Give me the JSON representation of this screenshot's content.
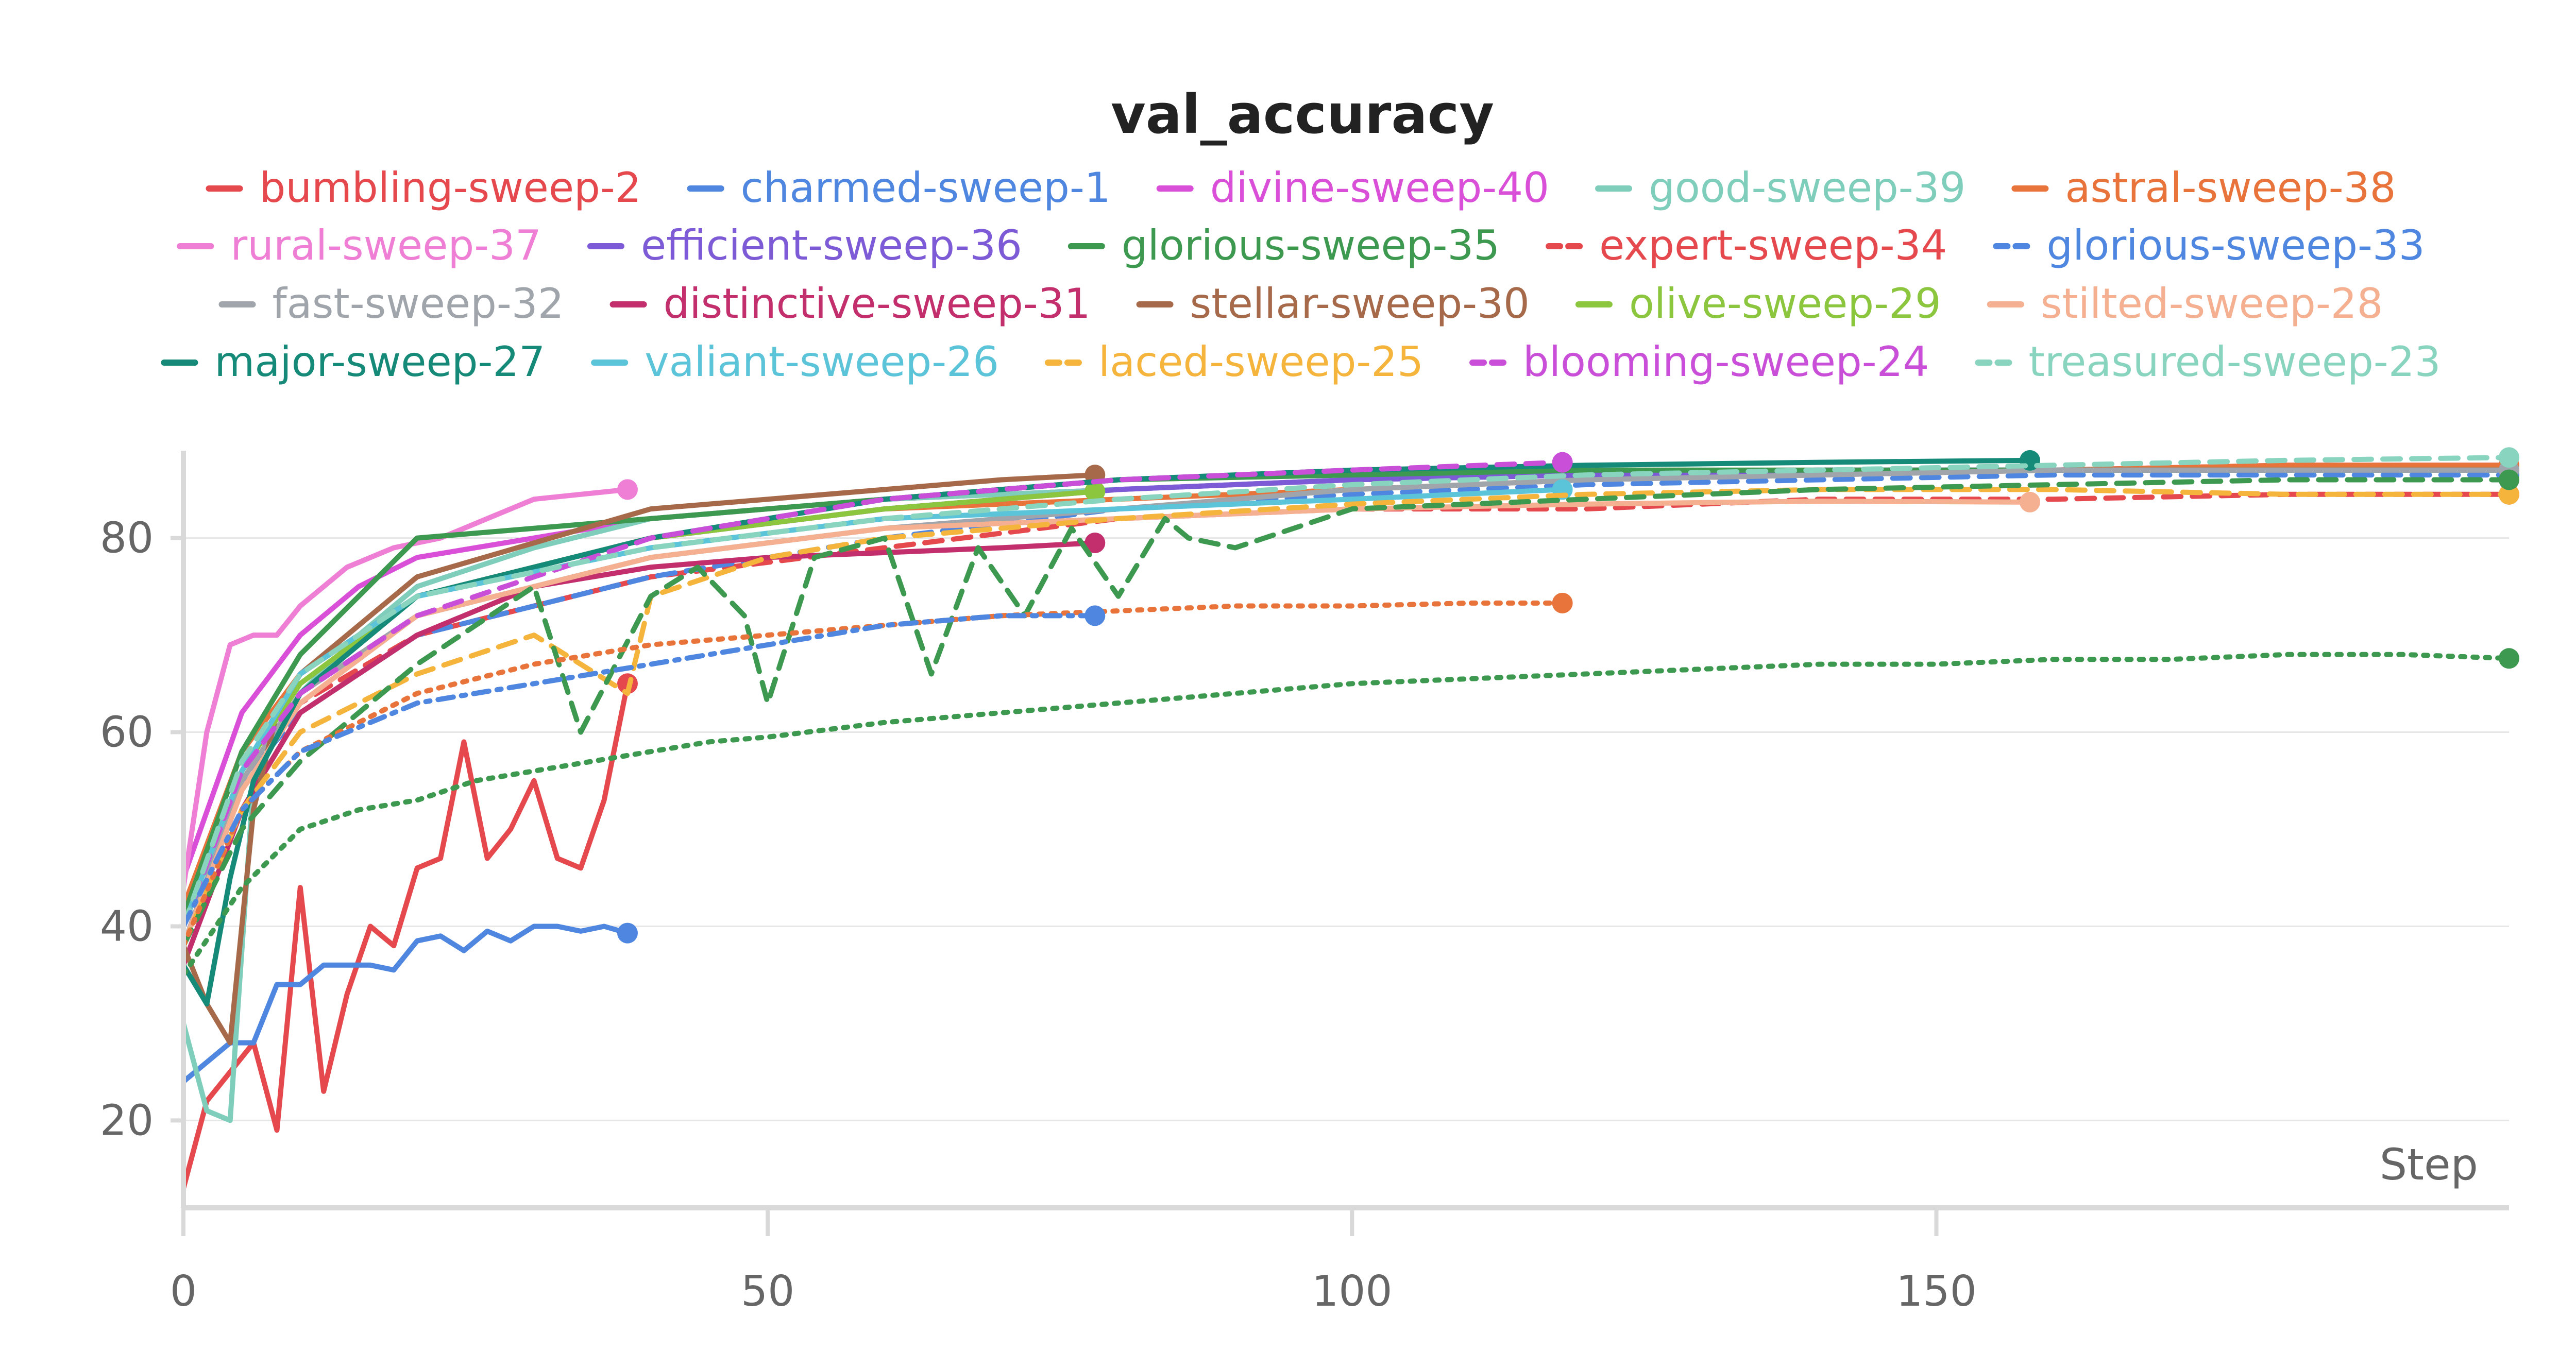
{
  "chart_data": {
    "type": "line",
    "title": "val_accuracy",
    "xlabel": "Step",
    "ylabel": "",
    "xlim": [
      0,
      199
    ],
    "ylim": [
      11,
      89
    ],
    "xticks": [
      0,
      50,
      100,
      150
    ],
    "yticks": [
      20,
      40,
      60,
      80
    ],
    "grid": true,
    "legend_position": "top",
    "series": [
      {
        "name": "bumbling-sweep-2",
        "color": "#e5484d",
        "dash": "solid",
        "x": [
          0,
          2,
          4,
          6,
          8,
          10,
          12,
          14,
          16,
          18,
          20,
          22,
          24,
          26,
          28,
          30,
          32,
          34,
          36,
          38
        ],
        "y": [
          13,
          22,
          25,
          28,
          19,
          44,
          23,
          33,
          40,
          38,
          46,
          47,
          59,
          47,
          50,
          55,
          47,
          46,
          53,
          65
        ]
      },
      {
        "name": "charmed-sweep-1",
        "color": "#4e86e0",
        "dash": "solid",
        "x": [
          0,
          2,
          4,
          6,
          8,
          10,
          12,
          14,
          16,
          18,
          20,
          22,
          24,
          26,
          28,
          30,
          32,
          34,
          36,
          38
        ],
        "y": [
          24,
          26,
          28,
          28,
          34,
          34,
          36,
          36,
          36,
          35.5,
          38.5,
          39,
          37.5,
          39.5,
          38.5,
          40,
          40,
          39.5,
          40,
          39.3
        ]
      },
      {
        "name": "divine-sweep-40",
        "color": "#d94fd8",
        "dash": "solid",
        "x": [
          0,
          5,
          10,
          15,
          20,
          30,
          40,
          60,
          80,
          100,
          120,
          140,
          160,
          180,
          199
        ],
        "y": [
          45,
          62,
          70,
          75,
          78,
          80,
          82,
          84,
          85,
          86,
          86.5,
          87,
          87,
          87.5,
          87.5
        ]
      },
      {
        "name": "good-sweep-39",
        "color": "#7fcdbb",
        "dash": "solid",
        "x": [
          0,
          2,
          4,
          6,
          10,
          15,
          20,
          30,
          40,
          60,
          80,
          100,
          120,
          140,
          160,
          180,
          199
        ],
        "y": [
          30,
          21,
          20,
          55,
          64,
          70,
          75,
          79,
          82,
          84,
          85,
          86,
          86.5,
          87,
          87,
          87,
          87.5
        ]
      },
      {
        "name": "astral-sweep-38",
        "color": "#e8743b",
        "dash": "solid",
        "x": [
          0,
          5,
          10,
          20,
          40,
          60,
          80,
          100,
          120,
          140,
          160,
          180,
          199
        ],
        "y": [
          42,
          58,
          66,
          74,
          80,
          83,
          84,
          85,
          86,
          86.5,
          87,
          87.5,
          87.5
        ]
      },
      {
        "name": "rural-sweep-37",
        "color": "#ef7fd5",
        "dash": "solid",
        "x": [
          0,
          2,
          4,
          6,
          8,
          10,
          14,
          18,
          22,
          26,
          30,
          34,
          38
        ],
        "y": [
          44,
          60,
          69,
          70,
          70,
          73,
          77,
          79,
          80,
          82,
          84,
          84.5,
          85
        ]
      },
      {
        "name": "efficient-sweep-36",
        "color": "#7e5bd6",
        "dash": "solid",
        "x": [
          0,
          5,
          10,
          20,
          40,
          60,
          80,
          100,
          120,
          140,
          160,
          180,
          199
        ],
        "y": [
          40,
          56,
          66,
          74,
          80,
          83,
          85,
          86,
          86.5,
          87,
          87,
          87,
          87
        ]
      },
      {
        "name": "glorious-sweep-35",
        "color": "#3e9950",
        "dash": "solid",
        "x": [
          0,
          5,
          10,
          20,
          40,
          60,
          80,
          100,
          120,
          140,
          160,
          180,
          199
        ],
        "y": [
          41,
          58,
          68,
          80,
          82,
          84,
          86,
          86.5,
          87,
          87,
          87,
          87,
          87
        ]
      },
      {
        "name": "expert-sweep-34",
        "color": "#e5484d",
        "dash": "dashed",
        "x": [
          0,
          5,
          10,
          20,
          40,
          60,
          80,
          100,
          120,
          140,
          160,
          180,
          199
        ],
        "y": [
          38,
          54,
          63,
          70,
          76,
          79,
          82,
          83,
          83,
          84,
          84,
          84.5,
          84.5
        ]
      },
      {
        "name": "glorious-sweep-33",
        "color": "#4e86e0",
        "dash": "dashed",
        "x": [
          0,
          5,
          10,
          20,
          40,
          60,
          80,
          100,
          120,
          140,
          160,
          180,
          199
        ],
        "y": [
          40,
          55,
          62,
          70,
          76,
          80,
          83,
          84.5,
          85.5,
          86,
          86.5,
          86.5,
          86.5
        ]
      },
      {
        "name": "fast-sweep-32",
        "color": "#a0a5ab",
        "dash": "solid",
        "x": [
          0,
          5,
          10,
          20,
          40,
          60,
          80,
          100,
          120,
          140,
          160,
          180,
          199
        ],
        "y": [
          38,
          55,
          64,
          72,
          78,
          81,
          83,
          85,
          86,
          86.5,
          87,
          87,
          87
        ]
      },
      {
        "name": "distinctive-sweep-31",
        "color": "#c22f6c",
        "dash": "solid",
        "x": [
          0,
          5,
          10,
          20,
          30,
          40,
          50,
          60,
          70,
          78
        ],
        "y": [
          36,
          52,
          62,
          70,
          75,
          77,
          78,
          78.5,
          79,
          79.5
        ]
      },
      {
        "name": "stellar-sweep-30",
        "color": "#a66a4a",
        "dash": "solid",
        "x": [
          0,
          2,
          4,
          6,
          8,
          10,
          20,
          40,
          60,
          70,
          78
        ],
        "y": [
          38,
          32,
          28,
          52,
          62,
          66,
          76,
          83,
          85,
          86,
          86.5
        ]
      },
      {
        "name": "olive-sweep-29",
        "color": "#8cc63f",
        "dash": "solid",
        "x": [
          0,
          5,
          10,
          20,
          40,
          60,
          78
        ],
        "y": [
          40,
          56,
          65,
          74,
          80,
          83,
          84.8
        ]
      },
      {
        "name": "stilted-sweep-28",
        "color": "#f4b090",
        "dash": "solid",
        "x": [
          0,
          5,
          10,
          20,
          40,
          60,
          80,
          100,
          120,
          140,
          158
        ],
        "y": [
          38,
          54,
          63,
          72,
          78,
          81,
          82,
          83,
          83.5,
          83.8,
          83.7
        ]
      },
      {
        "name": "major-sweep-27",
        "color": "#168a78",
        "dash": "solid",
        "x": [
          0,
          2,
          4,
          6,
          10,
          20,
          40,
          60,
          80,
          100,
          120,
          140,
          158
        ],
        "y": [
          36,
          32,
          45,
          55,
          64,
          74,
          80,
          84,
          86,
          87,
          87.5,
          87.8,
          88
        ]
      },
      {
        "name": "valiant-sweep-26",
        "color": "#5bc4d9",
        "dash": "solid",
        "x": [
          0,
          5,
          10,
          20,
          40,
          60,
          80,
          100,
          118
        ],
        "y": [
          40,
          56,
          66,
          74,
          79,
          82,
          83,
          84,
          85
        ]
      },
      {
        "name": "laced-sweep-25",
        "color": "#f5b43c",
        "dash": "dashed",
        "x": [
          0,
          5,
          10,
          20,
          30,
          38,
          40,
          50,
          60,
          80,
          100,
          120,
          140,
          160,
          180,
          199
        ],
        "y": [
          38,
          52,
          60,
          66,
          70,
          64,
          74,
          78,
          80,
          82,
          83.5,
          84.5,
          85,
          85,
          84.5,
          84.5
        ]
      },
      {
        "name": "blooming-sweep-24",
        "color": "#c94fd8",
        "dash": "dashed",
        "x": [
          0,
          5,
          10,
          20,
          40,
          60,
          80,
          100,
          118
        ],
        "y": [
          40,
          56,
          64,
          72,
          80,
          84,
          86,
          87,
          87.8
        ]
      },
      {
        "name": "treasured-sweep-23",
        "color": "#88d4be",
        "dash": "dashed",
        "x": [
          0,
          5,
          10,
          20,
          40,
          60,
          80,
          100,
          120,
          140,
          160,
          180,
          199
        ],
        "y": [
          40,
          57,
          66,
          74,
          79,
          82,
          84,
          85.5,
          86.5,
          87,
          87.5,
          88,
          88.3
        ]
      },
      {
        "name": "",
        "color": "#3e9950",
        "dash": "dashed",
        "x": [
          0,
          5,
          10,
          20,
          30,
          34,
          40,
          44,
          48,
          50,
          54,
          60,
          64,
          68,
          72,
          76,
          80,
          84,
          86,
          90,
          100,
          120,
          140,
          160,
          180,
          199
        ],
        "y": [
          38,
          50,
          57,
          67,
          75,
          60,
          74,
          77,
          72,
          63,
          78,
          80,
          66,
          79,
          72,
          81,
          74,
          82,
          80,
          79,
          83,
          84,
          85,
          85.5,
          86,
          86
        ]
      },
      {
        "name": "",
        "color": "#3e9950",
        "dash": "dotted",
        "x": [
          0,
          5,
          10,
          15,
          20,
          25,
          30,
          35,
          40,
          45,
          50,
          60,
          70,
          80,
          90,
          100,
          110,
          120,
          130,
          140,
          150,
          160,
          170,
          180,
          190,
          199
        ],
        "y": [
          35,
          44,
          50,
          52,
          53,
          55,
          56,
          57,
          58,
          59,
          59.5,
          61,
          62,
          63,
          64,
          65,
          65.5,
          66,
          66.5,
          67,
          67,
          67.5,
          67.5,
          68,
          68,
          67.6
        ]
      },
      {
        "name": "",
        "color": "#e8743b",
        "dash": "dotted",
        "x": [
          0,
          5,
          10,
          20,
          30,
          40,
          50,
          60,
          70,
          80,
          90,
          100,
          110,
          118
        ],
        "y": [
          38,
          52,
          58,
          64,
          67,
          69,
          70,
          71,
          72,
          72.5,
          73,
          73,
          73.3,
          73.3
        ]
      },
      {
        "name": "",
        "color": "#4e86e0",
        "dash": "dashdot",
        "x": [
          0,
          5,
          10,
          20,
          30,
          40,
          50,
          60,
          70,
          78
        ],
        "y": [
          40,
          52,
          58,
          63,
          65,
          67,
          69,
          71,
          72,
          72
        ]
      }
    ]
  }
}
